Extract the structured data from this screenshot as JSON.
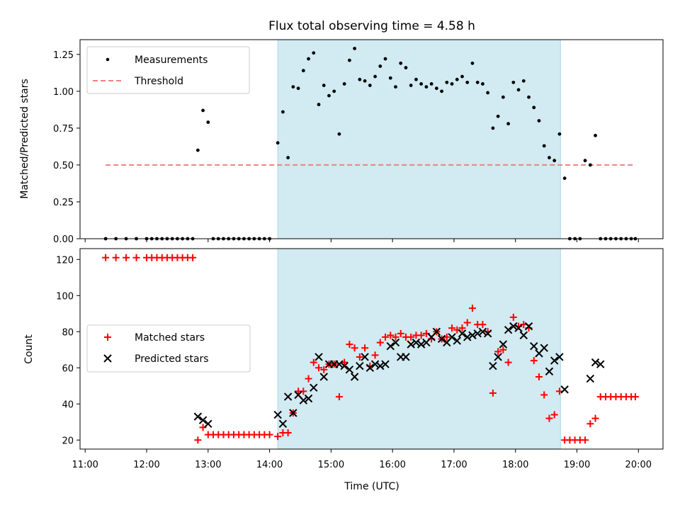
{
  "chart_data": [
    {
      "type": "scatter",
      "title": "Flux total observing time = 4.58 h",
      "ylabel": "Matched/Predicted stars",
      "ylim": [
        0,
        1.35
      ],
      "yticks": [
        "0.00",
        "0.25",
        "0.50",
        "0.75",
        "1.00",
        "1.25"
      ],
      "shaded_interval": [
        "14:08",
        "18:44"
      ],
      "shade_color": "#add8e6",
      "legend": "top-left",
      "threshold": {
        "name": "Threshold",
        "value": 0.5,
        "x": [
          "11:20",
          "19:57"
        ],
        "color": "#f08080"
      },
      "series": [
        {
          "name": "Measurements",
          "color": "#000000",
          "marker": "dot",
          "x": [
            "11:20",
            "11:30",
            "11:40",
            "11:50",
            "12:00",
            "12:05",
            "12:10",
            "12:15",
            "12:20",
            "12:25",
            "12:30",
            "12:35",
            "12:40",
            "12:45",
            "12:50",
            "12:55",
            "13:00",
            "13:05",
            "13:10",
            "13:15",
            "13:20",
            "13:25",
            "13:30",
            "13:35",
            "13:40",
            "13:45",
            "13:50",
            "13:55",
            "14:00",
            "14:08",
            "14:13",
            "14:18",
            "14:23",
            "14:28",
            "14:33",
            "14:38",
            "14:43",
            "14:48",
            "14:53",
            "14:58",
            "15:03",
            "15:08",
            "15:13",
            "15:18",
            "15:23",
            "15:28",
            "15:33",
            "15:38",
            "15:43",
            "15:48",
            "15:53",
            "15:58",
            "16:03",
            "16:08",
            "16:13",
            "16:18",
            "16:23",
            "16:28",
            "16:33",
            "16:38",
            "16:43",
            "16:48",
            "16:53",
            "16:58",
            "17:03",
            "17:08",
            "17:13",
            "17:18",
            "17:23",
            "17:28",
            "17:33",
            "17:38",
            "17:43",
            "17:48",
            "17:53",
            "17:58",
            "18:03",
            "18:08",
            "18:13",
            "18:18",
            "18:23",
            "18:28",
            "18:33",
            "18:38",
            "18:43",
            "18:48",
            "18:53",
            "18:58",
            "19:03",
            "19:08",
            "19:13",
            "19:18",
            "19:23",
            "19:28",
            "19:33",
            "19:38",
            "19:43",
            "19:48",
            "19:53",
            "19:57"
          ],
          "y": [
            0,
            0,
            0,
            0,
            0,
            0,
            0,
            0,
            0,
            0,
            0,
            0,
            0,
            0,
            0.6,
            0.87,
            0.79,
            0,
            0,
            0,
            0,
            0,
            0,
            0,
            0,
            0,
            0,
            0,
            0,
            0.65,
            0.86,
            0.55,
            1.03,
            1.02,
            1.14,
            1.22,
            1.26,
            0.91,
            1.04,
            0.97,
            1.0,
            0.71,
            1.05,
            1.21,
            1.29,
            1.08,
            1.07,
            1.04,
            1.1,
            1.17,
            1.22,
            1.09,
            1.03,
            1.19,
            1.16,
            1.04,
            1.08,
            1.05,
            1.03,
            1.05,
            1.02,
            1.0,
            1.06,
            1.05,
            1.08,
            1.1,
            1.06,
            1.19,
            1.06,
            1.05,
            0.99,
            0.75,
            0.83,
            0.96,
            0.78,
            1.06,
            1.01,
            1.07,
            0.96,
            0.89,
            0.8,
            0.63,
            0.55,
            0.53,
            0.71,
            0.41,
            0,
            0,
            0,
            0.53,
            0.5,
            0.7,
            0,
            0,
            0,
            0,
            0,
            0,
            0,
            0
          ]
        }
      ]
    },
    {
      "type": "scatter",
      "xlabel": "Time (UTC)",
      "ylabel": "Count",
      "ylim": [
        15,
        126
      ],
      "yticks": [
        "20",
        "40",
        "60",
        "80",
        "100",
        "120"
      ],
      "xticks": [
        "11:00",
        "12:00",
        "13:00",
        "14:00",
        "15:00",
        "16:00",
        "17:00",
        "18:00",
        "19:00",
        "20:00"
      ],
      "shaded_interval": [
        "14:08",
        "18:44"
      ],
      "shade_color": "#add8e6",
      "legend": "center-left",
      "series": [
        {
          "name": "Matched stars",
          "color": "#ff0000",
          "marker": "plus",
          "x": [
            "11:20",
            "11:30",
            "11:40",
            "11:50",
            "12:00",
            "12:05",
            "12:10",
            "12:15",
            "12:20",
            "12:25",
            "12:30",
            "12:35",
            "12:40",
            "12:45",
            "12:50",
            "12:55",
            "13:00",
            "13:05",
            "13:10",
            "13:15",
            "13:20",
            "13:25",
            "13:30",
            "13:35",
            "13:40",
            "13:45",
            "13:50",
            "13:55",
            "14:00",
            "14:08",
            "14:13",
            "14:18",
            "14:23",
            "14:28",
            "14:33",
            "14:38",
            "14:43",
            "14:48",
            "14:53",
            "14:58",
            "15:03",
            "15:08",
            "15:13",
            "15:18",
            "15:23",
            "15:28",
            "15:33",
            "15:38",
            "15:43",
            "15:48",
            "15:53",
            "15:58",
            "16:03",
            "16:08",
            "16:13",
            "16:18",
            "16:23",
            "16:28",
            "16:33",
            "16:38",
            "16:43",
            "16:48",
            "16:53",
            "16:58",
            "17:03",
            "17:08",
            "17:13",
            "17:18",
            "17:23",
            "17:28",
            "17:33",
            "17:38",
            "17:43",
            "17:48",
            "17:53",
            "17:58",
            "18:03",
            "18:08",
            "18:13",
            "18:18",
            "18:23",
            "18:28",
            "18:33",
            "18:38",
            "18:43",
            "18:48",
            "18:53",
            "18:58",
            "19:03",
            "19:08",
            "19:13",
            "19:18",
            "19:23",
            "19:28",
            "19:33",
            "19:38",
            "19:43",
            "19:48",
            "19:53",
            "19:57"
          ],
          "y": [
            121,
            121,
            121,
            121,
            121,
            121,
            121,
            121,
            121,
            121,
            121,
            121,
            121,
            121,
            20,
            27,
            23,
            23,
            23,
            23,
            23,
            23,
            23,
            23,
            23,
            23,
            23,
            23,
            23,
            22,
            24,
            24,
            35,
            47,
            47,
            54,
            63,
            60,
            59,
            62,
            62,
            44,
            63,
            73,
            71,
            66,
            71,
            61,
            67,
            74,
            77,
            78,
            77,
            79,
            77,
            77,
            78,
            78,
            79,
            76,
            80,
            76,
            77,
            82,
            81,
            82,
            85,
            93,
            84,
            84,
            80,
            46,
            69,
            70,
            63,
            88,
            83,
            84,
            82,
            64,
            55,
            45,
            32,
            34,
            47,
            20,
            20,
            20,
            20,
            20,
            29,
            32,
            44,
            44,
            44,
            44,
            44,
            44,
            44,
            44
          ]
        },
        {
          "name": "Predicted stars",
          "color": "#000000",
          "marker": "x",
          "x": [
            "12:50",
            "12:55",
            "13:00",
            "14:08",
            "14:13",
            "14:18",
            "14:23",
            "14:28",
            "14:33",
            "14:38",
            "14:43",
            "14:48",
            "14:53",
            "14:58",
            "15:03",
            "15:08",
            "15:13",
            "15:18",
            "15:23",
            "15:28",
            "15:33",
            "15:38",
            "15:43",
            "15:48",
            "15:53",
            "15:58",
            "16:03",
            "16:08",
            "16:13",
            "16:18",
            "16:23",
            "16:28",
            "16:33",
            "16:38",
            "16:43",
            "16:48",
            "16:53",
            "16:58",
            "17:03",
            "17:08",
            "17:13",
            "17:18",
            "17:23",
            "17:28",
            "17:33",
            "17:38",
            "17:43",
            "17:48",
            "17:53",
            "17:58",
            "18:03",
            "18:08",
            "18:13",
            "18:18",
            "18:23",
            "18:28",
            "18:33",
            "18:38",
            "18:43",
            "18:48",
            "19:13",
            "19:18",
            "19:23"
          ],
          "y": [
            33,
            31,
            29,
            34,
            29,
            44,
            35,
            45,
            42,
            43,
            49,
            66,
            55,
            62,
            62,
            62,
            61,
            59,
            55,
            61,
            66,
            60,
            62,
            61,
            62,
            72,
            74,
            66,
            66,
            73,
            74,
            73,
            74,
            77,
            80,
            76,
            74,
            77,
            75,
            79,
            77,
            78,
            79,
            80,
            79,
            61,
            66,
            73,
            81,
            83,
            82,
            78,
            83,
            72,
            68,
            71,
            58,
            64,
            66,
            48,
            54,
            63,
            62
          ]
        }
      ]
    }
  ]
}
